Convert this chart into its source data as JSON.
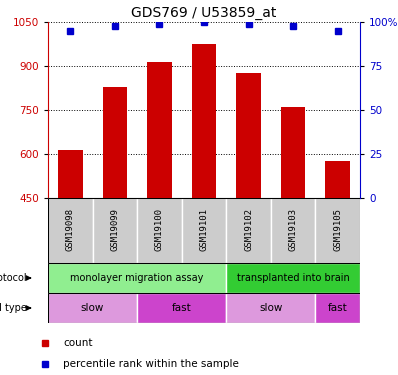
{
  "title": "GDS769 / U53859_at",
  "samples": [
    "GSM19098",
    "GSM19099",
    "GSM19100",
    "GSM19101",
    "GSM19102",
    "GSM19103",
    "GSM19105"
  ],
  "counts": [
    615,
    830,
    915,
    975,
    875,
    760,
    575
  ],
  "percentile_ranks": [
    95,
    98,
    99,
    100,
    99,
    98,
    95
  ],
  "ylim_left": [
    450,
    1050
  ],
  "ylim_right": [
    0,
    100
  ],
  "yticks_left": [
    450,
    600,
    750,
    900,
    1050
  ],
  "yticks_right": [
    0,
    25,
    50,
    75,
    100
  ],
  "ytick_labels_right": [
    "0",
    "25",
    "50",
    "75",
    "100%"
  ],
  "bar_color": "#cc0000",
  "dot_color": "#0000cc",
  "bar_width": 0.55,
  "protocol_labels": [
    {
      "text": "monolayer migration assay",
      "start": 0,
      "end": 4,
      "color": "#90ee90"
    },
    {
      "text": "transplanted into brain",
      "start": 4,
      "end": 7,
      "color": "#33cc33"
    }
  ],
  "cell_type_labels": [
    {
      "text": "slow",
      "start": 0,
      "end": 2,
      "color": "#dd99dd"
    },
    {
      "text": "fast",
      "start": 2,
      "end": 4,
      "color": "#cc44cc"
    },
    {
      "text": "slow",
      "start": 4,
      "end": 6,
      "color": "#dd99dd"
    },
    {
      "text": "fast",
      "start": 6,
      "end": 7,
      "color": "#cc44cc"
    }
  ],
  "sample_box_color": "#cccccc",
  "protocol_row_label": "protocol",
  "cell_type_row_label": "cell type",
  "legend_count_label": "count",
  "legend_percentile_label": "percentile rank within the sample",
  "left_axis_color": "#cc0000",
  "right_axis_color": "#0000cc",
  "title_fontsize": 10,
  "tick_fontsize": 7.5,
  "annotation_fontsize": 7.5,
  "sample_fontsize": 6.5
}
